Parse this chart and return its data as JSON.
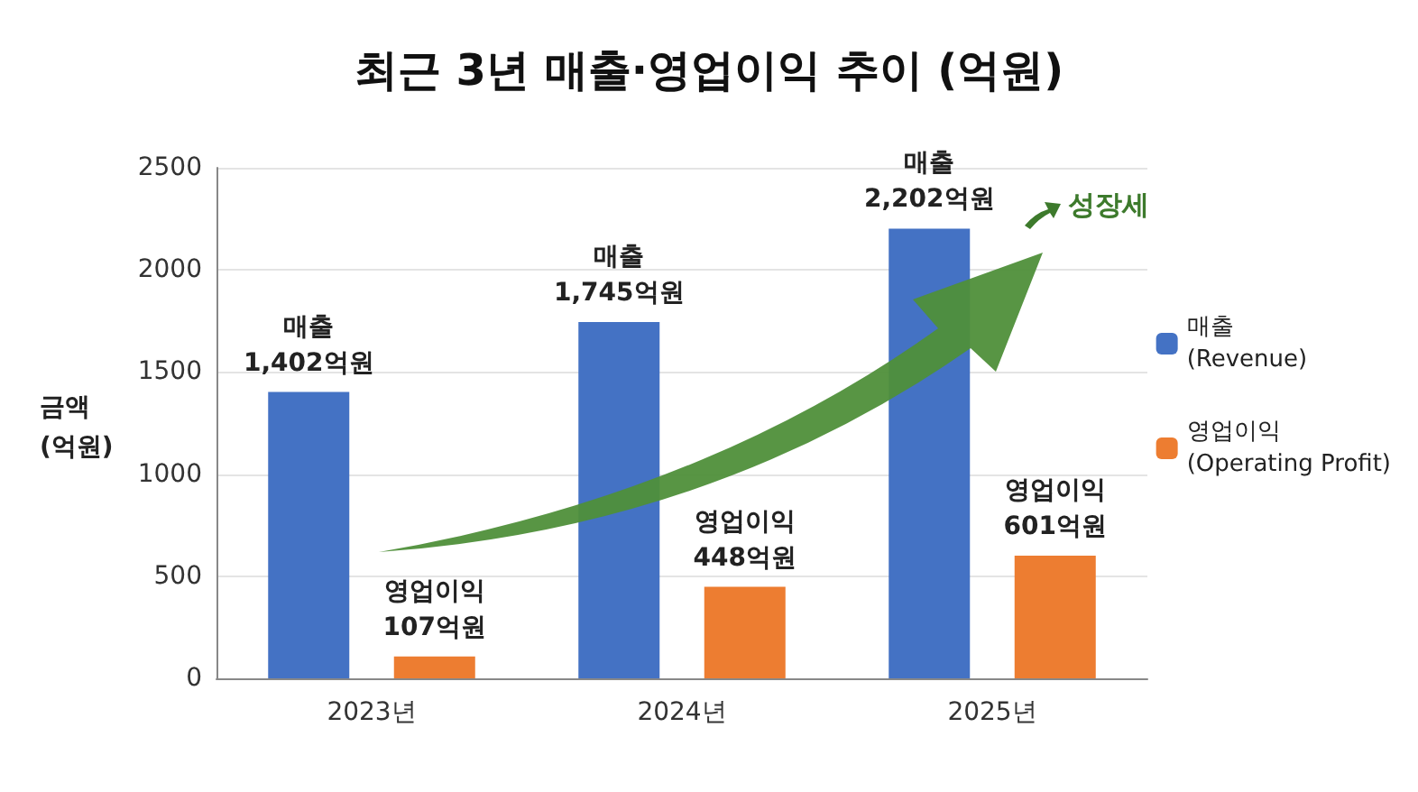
{
  "chart_data": {
    "type": "bar",
    "title": "최근 3년 매출·영업이익 추이 (억원)",
    "ylabel": "금액 (억원)",
    "categories": [
      "2023년",
      "2024년",
      "2025년"
    ],
    "series": [
      {
        "name": "매출 (Revenue)",
        "color": "#4472c4",
        "values": [
          1402,
          1745,
          2202
        ],
        "value_labels": [
          "매출\n1,402억원",
          "매출\n1,745억원",
          "매출\n2,202억원"
        ]
      },
      {
        "name": "영업이익 (Operating Profit)",
        "color": "#ed7d31",
        "values": [
          107,
          448,
          601
        ],
        "value_labels": [
          "영업이익\n107억원",
          "영업이익\n448억원",
          "영업이익\n601억원"
        ]
      }
    ],
    "ylim": [
      0,
      2500
    ],
    "yticks": [
      0,
      500,
      1000,
      1500,
      2000,
      2500
    ],
    "annotations": [
      "성장세"
    ],
    "grid": "y",
    "legend": "right"
  }
}
